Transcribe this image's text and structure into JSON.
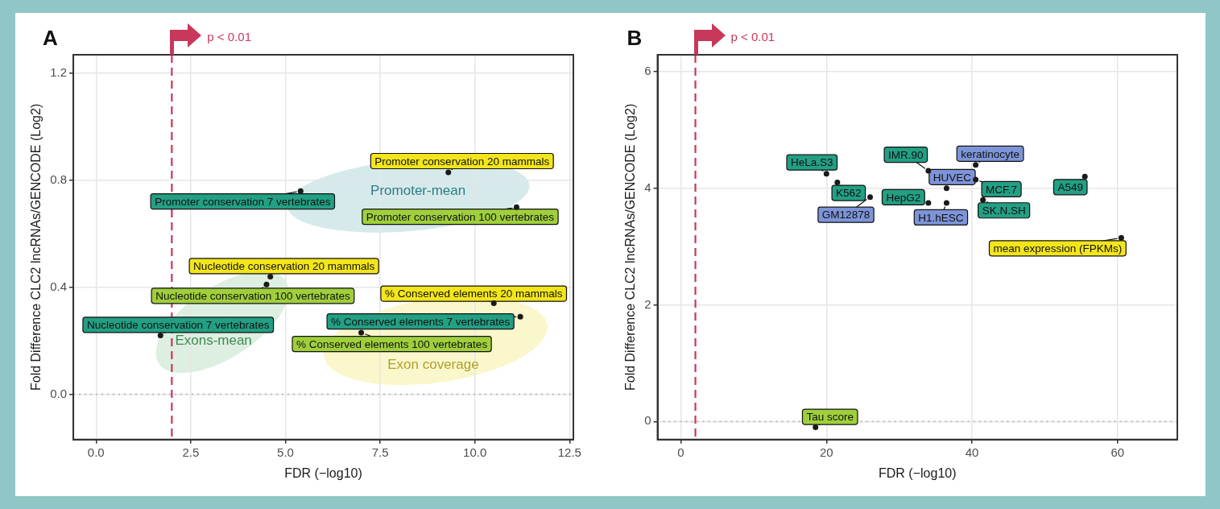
{
  "chart_data": [
    {
      "type": "scatter",
      "title": "A",
      "xlabel": "FDR (−log10)",
      "ylabel": "Fold Difference CLC2 lncRNAs/GENCODE (Log2)",
      "series": [
        {
          "color": "#1a1a1a",
          "x": [
            9.3,
            5.4,
            11.1,
            4.6,
            4.5,
            1.7,
            10.5,
            11.2,
            7.0
          ],
          "values": [
            0.83,
            0.76,
            0.7,
            0.44,
            0.41,
            0.22,
            0.34,
            0.29,
            0.23
          ]
        }
      ],
      "xlim": [
        -0.6,
        12.6
      ],
      "ylim": [
        -0.17,
        1.27
      ],
      "xticks": [
        {
          "value": 0,
          "label": "0.0"
        },
        {
          "value": 2.5,
          "label": "2.5"
        },
        {
          "value": 5,
          "label": "5.0"
        },
        {
          "value": 7.5,
          "label": "7.5"
        },
        {
          "value": 10,
          "label": "10.0"
        },
        {
          "value": 12.5,
          "label": "12.5"
        }
      ],
      "yticks": [
        {
          "value": 0,
          "label": "0.0"
        },
        {
          "value": 0.4,
          "label": "0.4"
        },
        {
          "value": 0.8,
          "label": "0.8"
        },
        {
          "value": 1.2,
          "label": "1.2"
        }
      ],
      "grid": true,
      "legend": false,
      "marker": "circle",
      "ref_lines": [
        {
          "axis": "x",
          "value": 2,
          "label": "p < 0.01",
          "color": "#c8385a",
          "line_style": "dashed"
        },
        {
          "axis": "y",
          "value": 0,
          "color": "#bdbdbd",
          "line_style": "dotted"
        }
      ],
      "annotations": [
        {
          "text": "Promoter conservation 20 mammals",
          "x": 9.3,
          "y": 0.83
        },
        {
          "text": "Promoter conservation 7 vertebrates",
          "x": 5.4,
          "y": 0.76
        },
        {
          "text": "Promoter conservation 100 vertebrates",
          "x": 11.1,
          "y": 0.7
        },
        {
          "text": "Nucleotide conservation 20 mammals",
          "x": 4.6,
          "y": 0.44
        },
        {
          "text": "Nucleotide conservation 100 vertebrates",
          "x": 4.5,
          "y": 0.41
        },
        {
          "text": "Nucleotide conservation 7 vertebrates",
          "x": 1.7,
          "y": 0.22
        },
        {
          "text": "% Conserved elements 20 mammals",
          "x": 10.5,
          "y": 0.34
        },
        {
          "text": "% Conserved elements 7 vertebrates",
          "x": 11.2,
          "y": 0.29
        },
        {
          "text": "% Conserved elements 100 vertebrates",
          "x": 7.0,
          "y": 0.23
        },
        "Promoter-mean",
        "Exons-mean",
        "Exon coverage"
      ]
    },
    {
      "type": "scatter",
      "title": "B",
      "xlabel": "FDR (−log10)",
      "ylabel": "Fold Difference CLC2 lncRNAs/GENCODE (Log2)",
      "series": [
        {
          "color": "#1a1a1a",
          "x": [
            20,
            21.5,
            26,
            34,
            34,
            40.5,
            36.5,
            40.5,
            36.5,
            41.5,
            55.5,
            60.5,
            18.5
          ],
          "values": [
            4.25,
            4.1,
            3.85,
            3.75,
            4.3,
            4.4,
            4.0,
            4.15,
            3.75,
            3.8,
            4.2,
            3.15,
            -0.1
          ]
        }
      ],
      "xlim": [
        -3.2,
        68.2
      ],
      "ylim": [
        -0.31,
        6.29
      ],
      "xticks": [
        0,
        20,
        40,
        60
      ],
      "yticks": [
        0,
        2,
        4,
        6
      ],
      "grid": true,
      "legend": false,
      "marker": "circle",
      "ref_lines": [
        {
          "axis": "x",
          "value": 2,
          "label": "p < 0.01",
          "color": "#c8385a",
          "line_style": "dashed"
        },
        {
          "axis": "y",
          "value": 0,
          "color": "#bdbdbd",
          "line_style": "dotted"
        }
      ],
      "annotations": [
        {
          "text": "HeLa.S3",
          "x": 20,
          "y": 4.25
        },
        {
          "text": "K562",
          "x": 21.5,
          "y": 4.1
        },
        {
          "text": "GM12878",
          "x": 26,
          "y": 3.85
        },
        {
          "text": "HepG2",
          "x": 34,
          "y": 3.75
        },
        {
          "text": "IMR.90",
          "x": 34,
          "y": 4.3
        },
        {
          "text": "keratinocyte",
          "x": 40.5,
          "y": 4.4
        },
        {
          "text": "HUVEC",
          "x": 36.5,
          "y": 4.0
        },
        {
          "text": "MCF.7",
          "x": 40.5,
          "y": 4.15
        },
        {
          "text": "H1.hESC",
          "x": 36.5,
          "y": 3.75
        },
        {
          "text": "SK.N.SH",
          "x": 41.5,
          "y": 3.8
        },
        {
          "text": "A549",
          "x": 55.5,
          "y": 4.2
        },
        {
          "text": "mean expression (FPKMs)",
          "x": 60.5,
          "y": 3.15
        },
        {
          "text": "Tau score",
          "x": 18.5,
          "y": -0.1
        }
      ]
    }
  ]
}
